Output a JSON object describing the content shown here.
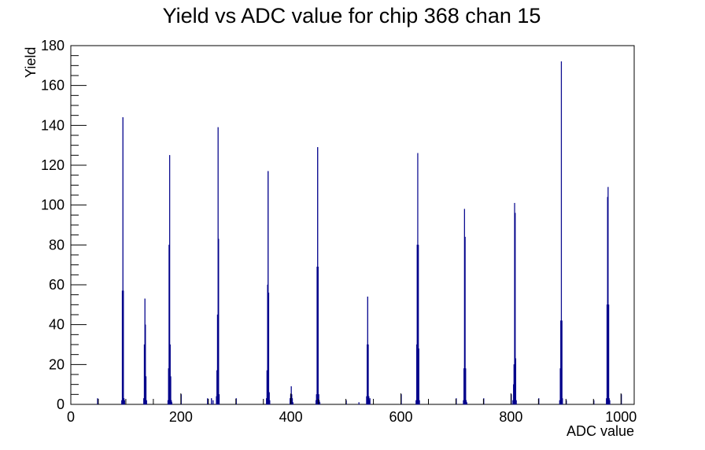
{
  "colors": {
    "series": "#00008b",
    "axis": "#000000",
    "background": "#ffffff"
  },
  "chart_data": {
    "type": "bar",
    "title": "Yield vs ADC value for chip 368 chan 15",
    "xlabel": "ADC value",
    "ylabel": "Yield",
    "xlim": [
      0,
      1024
    ],
    "ylim": [
      0,
      180
    ],
    "x_ticks": [
      0,
      200,
      400,
      600,
      800,
      1000
    ],
    "y_ticks": [
      0,
      20,
      40,
      60,
      80,
      100,
      120,
      140,
      160,
      180
    ],
    "grid": false,
    "legend": "none",
    "bin_width": 1,
    "series": [
      {
        "x": [
          48,
          92,
          93,
          94,
          95,
          96,
          97,
          132,
          133,
          134,
          135,
          136,
          137,
          176,
          177,
          178,
          179,
          180,
          181,
          182,
          183,
          200,
          248,
          255,
          258,
          264,
          265,
          266,
          267,
          268,
          269,
          300,
          355,
          356,
          357,
          358,
          359,
          360,
          361,
          398,
          399,
          400,
          401,
          402,
          403,
          445,
          446,
          447,
          448,
          449,
          450,
          451,
          452,
          500,
          523,
          537,
          538,
          539,
          540,
          541,
          542,
          543,
          600,
          627,
          628,
          629,
          630,
          631,
          632,
          633,
          700,
          713,
          714,
          715,
          716,
          717,
          718,
          719,
          750,
          800,
          803,
          804,
          805,
          806,
          807,
          808,
          809,
          850,
          888,
          889,
          890,
          891,
          892,
          893,
          900,
          950,
          973,
          974,
          975,
          976,
          977,
          978,
          979,
          1000
        ],
        "values": [
          3,
          2,
          57,
          144,
          57,
          3,
          2,
          3,
          30,
          53,
          40,
          14,
          2,
          2,
          18,
          80,
          125,
          30,
          14,
          2,
          1,
          5,
          3,
          3,
          2,
          4,
          17,
          45,
          139,
          83,
          5,
          3,
          3,
          17,
          60,
          117,
          56,
          6,
          2,
          3,
          5,
          9,
          5,
          3,
          1,
          2,
          5,
          69,
          129,
          69,
          5,
          2,
          1,
          2,
          1,
          4,
          30,
          54,
          30,
          4,
          2,
          3,
          5,
          2,
          30,
          80,
          126,
          80,
          28,
          2,
          3,
          2,
          18,
          98,
          84,
          18,
          2,
          1,
          3,
          5,
          2,
          10,
          20,
          101,
          96,
          23,
          2,
          3,
          2,
          18,
          42,
          172,
          42,
          3,
          2,
          2,
          3,
          50,
          104,
          109,
          50,
          3,
          2,
          5
        ]
      }
    ]
  }
}
